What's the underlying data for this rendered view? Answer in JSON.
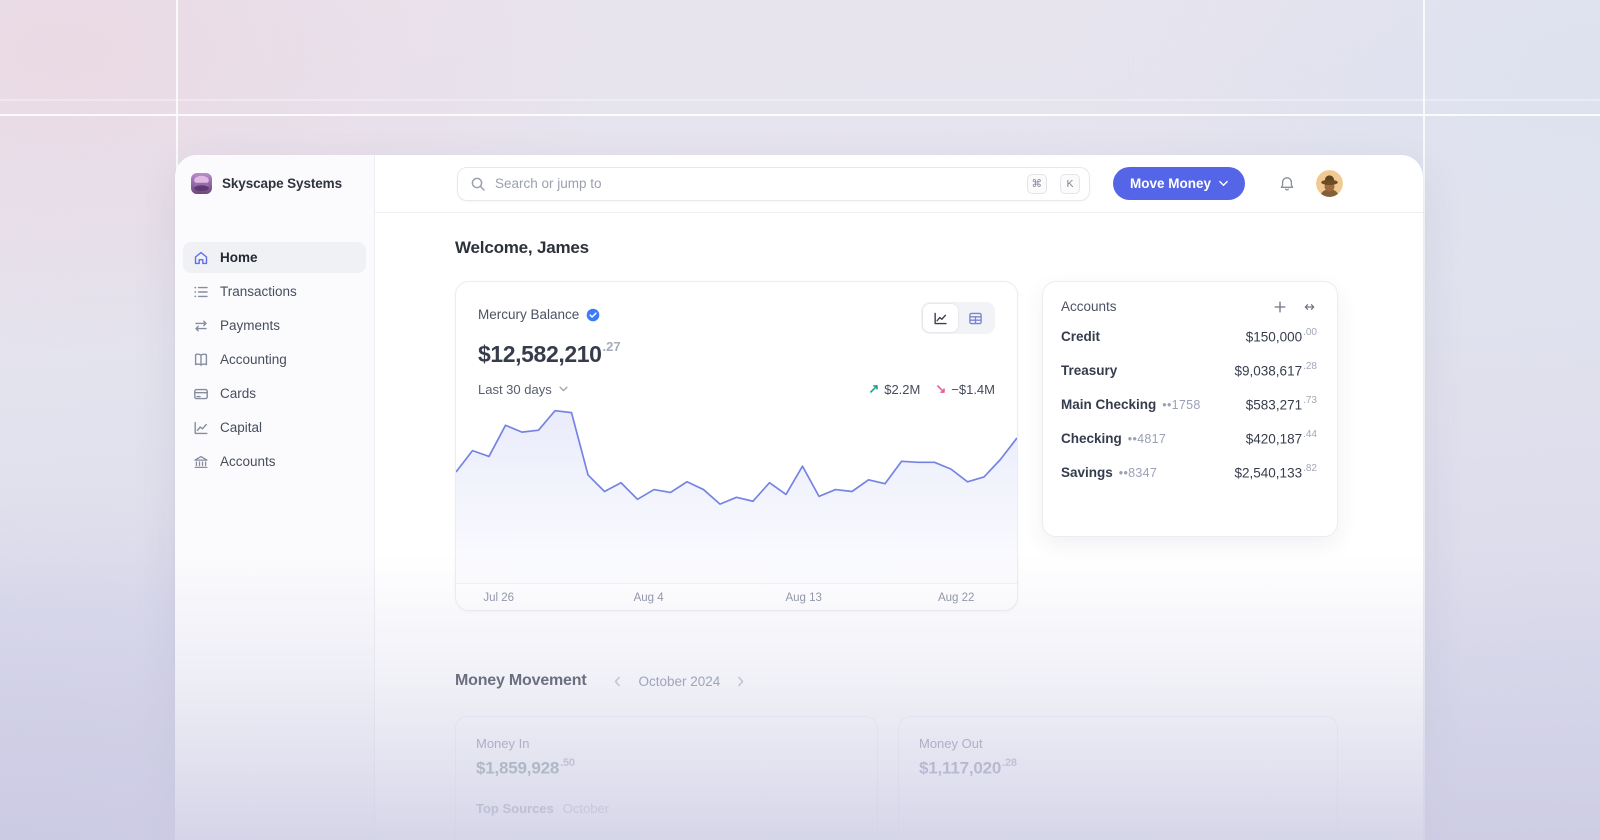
{
  "brand": {
    "name": "Skyscape Systems",
    "logo_icon": "stack-logo-icon",
    "logo_color": "#8e5fa3"
  },
  "topbar": {
    "search_placeholder": "Search or jump to",
    "search_icon": "magnifier-icon",
    "shortcut_keys": [
      "⌘",
      "K"
    ],
    "move_money_label": "Move Money",
    "move_money_color": "#5565e8",
    "bell_icon": "bell-icon",
    "avatar": "user-avatar"
  },
  "sidebar": {
    "items": [
      {
        "label": "Home",
        "icon": "home-icon",
        "active": true
      },
      {
        "label": "Transactions",
        "icon": "list-icon",
        "active": false
      },
      {
        "label": "Payments",
        "icon": "transfer-arrows-icon",
        "active": false
      },
      {
        "label": "Accounting",
        "icon": "book-icon",
        "active": false
      },
      {
        "label": "Cards",
        "icon": "credit-card-icon",
        "active": false
      },
      {
        "label": "Capital",
        "icon": "line-chart-icon",
        "active": false
      },
      {
        "label": "Accounts",
        "icon": "bank-icon",
        "active": false
      }
    ]
  },
  "main": {
    "welcome": "Welcome, James",
    "balance_card": {
      "title": "Mercury Balance",
      "verified_badge": "verified-check-icon",
      "amount_main": "$12,582,210",
      "amount_cents": ".27",
      "range_label": "Last 30 days",
      "inflow": "$2.2M",
      "outflow": "−$1.4M",
      "inflow_color": "#1ba593",
      "outflow_color": "#e85c9a",
      "view_toggle": [
        "line-chart-icon",
        "table-icon"
      ]
    },
    "accounts_card": {
      "title": "Accounts",
      "actions": [
        "plus-icon",
        "width-arrows-icon"
      ],
      "rows": [
        {
          "name": "Credit",
          "mask": "",
          "amount": "$150,000",
          "cents": ".00"
        },
        {
          "name": "Treasury",
          "mask": "",
          "amount": "$9,038,617",
          "cents": ".28"
        },
        {
          "name": "Main Checking",
          "mask": "••1758",
          "amount": "$583,271",
          "cents": ".73"
        },
        {
          "name": "Checking",
          "mask": "••4817",
          "amount": "$420,187",
          "cents": ".44"
        },
        {
          "name": "Savings",
          "mask": "••8347",
          "amount": "$2,540,133",
          "cents": ".82"
        }
      ]
    },
    "money_movement": {
      "title": "Money Movement",
      "period": "October 2024",
      "money_in_label": "Money In",
      "money_in_value": "$1,859,928",
      "money_in_cents": ".50",
      "money_out_label": "Money Out",
      "money_out_value": "$1,117,020",
      "money_out_cents": ".28",
      "top_sources_label": "Top Sources",
      "top_sources_period": "October"
    }
  },
  "chart_data": {
    "type": "area",
    "title": "Mercury Balance — Last 30 days",
    "unit": "USD millions",
    "line_color": "#7584e4",
    "fill_color": "rgba(120,134,228,0.14)",
    "grid": false,
    "legend": "none",
    "ylim": [
      11.09,
      12.97
    ],
    "values": [
      12.23,
      12.45,
      12.39,
      12.71,
      12.64,
      12.66,
      12.86,
      12.84,
      12.2,
      12.03,
      12.12,
      11.95,
      12.05,
      12.02,
      12.13,
      12.05,
      11.9,
      11.97,
      11.93,
      12.12,
      12.0,
      12.29,
      11.98,
      12.05,
      12.03,
      12.15,
      12.11,
      12.34,
      12.33,
      12.33,
      12.26,
      12.13,
      12.18,
      12.36,
      12.58
    ],
    "ticks": [
      {
        "label": "Jul 26",
        "pct": 4
      },
      {
        "label": "Aug 4",
        "pct": 33
      },
      {
        "label": "Aug 13",
        "pct": 63
      },
      {
        "label": "Aug 22",
        "pct": 92.5
      }
    ]
  }
}
